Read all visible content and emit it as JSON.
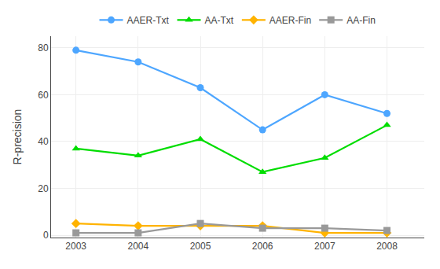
{
  "chart_data": {
    "type": "line",
    "ylabel": "R-precision",
    "x": [
      2003,
      2004,
      2005,
      2006,
      2007,
      2008
    ],
    "series": [
      {
        "name": "AAER-Txt",
        "color": "#4da6ff",
        "marker": "circle",
        "values": [
          79,
          74,
          63,
          45,
          60,
          52
        ]
      },
      {
        "name": "AA-Txt",
        "color": "#00dd00",
        "marker": "triangle-up",
        "values": [
          37,
          34,
          41,
          27,
          33,
          47
        ]
      },
      {
        "name": "AAER-Fin",
        "color": "#ffb300",
        "marker": "diamond",
        "values": [
          5,
          4,
          4,
          4,
          1,
          1
        ]
      },
      {
        "name": "AA-Fin",
        "color": "#999999",
        "marker": "square",
        "values": [
          1,
          1,
          5,
          3,
          3,
          2
        ]
      }
    ],
    "xlim": [
      2002.6,
      2008.6
    ],
    "xticks": [
      2003,
      2004,
      2005,
      2006,
      2007,
      2008
    ],
    "ylim": [
      -1,
      85
    ],
    "yticks": [
      0,
      20,
      40,
      60,
      80
    ],
    "grid": true,
    "legend": "top"
  }
}
